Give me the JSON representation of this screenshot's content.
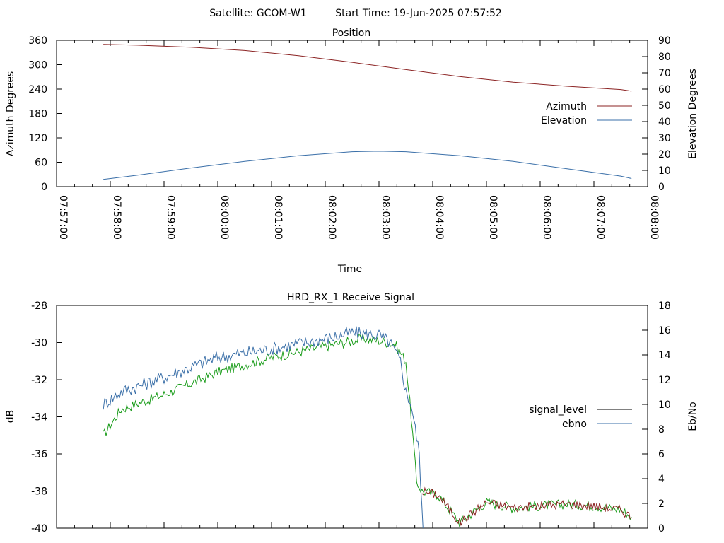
{
  "header": {
    "satellite": "Satellite: GCOM-W1",
    "start_time": "Start Time: 19-Jun-2025 07:57:52"
  },
  "chart_data": [
    {
      "type": "line",
      "title": "Position",
      "xlabel": "Time",
      "ylabel": "Azimuth Degrees",
      "y2label": "Elevation Degrees",
      "ylim": [
        0,
        360
      ],
      "y2lim": [
        0,
        90
      ],
      "yticks": [
        "0",
        "60",
        "120",
        "180",
        "240",
        "300",
        "360"
      ],
      "y2ticks": [
        "0",
        "10",
        "20",
        "30",
        "40",
        "50",
        "60",
        "70",
        "80",
        "90"
      ],
      "xticks": [
        "07:57:00",
        "07:58:00",
        "07:59:00",
        "08:00:00",
        "08:01:00",
        "08:02:00",
        "08:03:00",
        "08:04:00",
        "08:05:00",
        "08:06:00",
        "08:07:00",
        "08:08:00"
      ],
      "xlim_minutes": [
        0,
        11
      ],
      "legend": "right",
      "series": [
        {
          "name": "Azimuth",
          "axis": "left",
          "color": "#8b2323",
          "x": [
            0.87,
            1.5,
            2.5,
            3.5,
            4.5,
            5.5,
            6.5,
            7.5,
            8.5,
            9.5,
            10.5,
            10.7
          ],
          "values": [
            350,
            348,
            343,
            335,
            322,
            306,
            288,
            271,
            257,
            247,
            239,
            235
          ]
        },
        {
          "name": "Elevation",
          "axis": "right",
          "color": "#3a6fa8",
          "x": [
            0.87,
            1.5,
            2.5,
            3.5,
            4.5,
            5.5,
            6.0,
            6.5,
            7.5,
            8.5,
            9.5,
            10.5,
            10.7
          ],
          "values": [
            4.5,
            7,
            11.5,
            15.5,
            19,
            21.5,
            21.8,
            21.5,
            19,
            15.5,
            11,
            6.5,
            5
          ]
        }
      ]
    },
    {
      "type": "line",
      "title": "HRD_RX_1 Receive Signal",
      "ylabel": "dB",
      "y2label": "Eb/No",
      "ylim": [
        -40,
        -28
      ],
      "y2lim": [
        0,
        18
      ],
      "yticks": [
        "-40",
        "-38",
        "-36",
        "-34",
        "-32",
        "-30",
        "-28"
      ],
      "y2ticks": [
        "0",
        "2",
        "4",
        "6",
        "8",
        "10",
        "12",
        "14",
        "16",
        "18"
      ],
      "xlim_minutes": [
        0,
        11
      ],
      "legend": "right",
      "series": [
        {
          "name": "signal_level",
          "axis": "left",
          "color": "#000000",
          "x": [
            0.87,
            1.2,
            2.0,
            3.0,
            4.0,
            5.0,
            5.7,
            6.0,
            6.3,
            6.5,
            6.6,
            6.7,
            6.8,
            7.1,
            7.5,
            8.0,
            8.5,
            9.0,
            9.5,
            10.0,
            10.5,
            10.7
          ],
          "values": [
            -35.0,
            -33.6,
            -32.8,
            -31.6,
            -30.8,
            -30.2,
            -29.8,
            -29.9,
            -30.1,
            -31.0,
            -34.0,
            -37.5,
            -38.0,
            -38.2,
            -39.7,
            -38.6,
            -38.9,
            -38.8,
            -38.7,
            -38.8,
            -39.0,
            -39.4
          ]
        },
        {
          "name": "ebno",
          "axis": "right",
          "color": "#3a6fa8",
          "x": [
            0.87,
            1.2,
            2.0,
            3.0,
            4.0,
            5.0,
            5.5,
            6.0,
            6.2,
            6.4,
            6.5,
            6.6,
            6.75,
            6.82
          ],
          "values": [
            10,
            11,
            12.2,
            13.8,
            14.5,
            15.3,
            15.8,
            15.6,
            15.0,
            13.5,
            11,
            10,
            6,
            0
          ]
        }
      ]
    }
  ]
}
